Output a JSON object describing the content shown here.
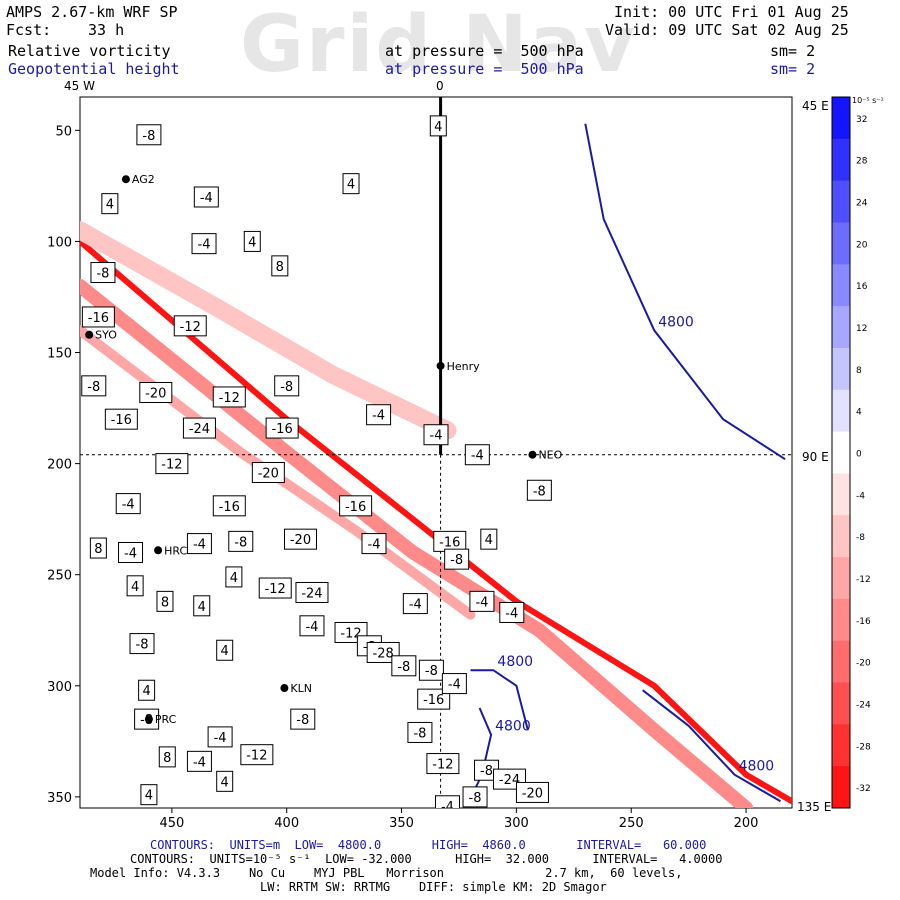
{
  "header": {
    "model": "AMPS 2.67-km WRF SP",
    "fcst_label": "Fcst:",
    "fcst_value": "33 h",
    "init": "Init: 00 UTC Fri 01 Aug 25",
    "valid": "Valid: 09 UTC Sat 02 Aug 25",
    "field1": "Relative vorticity",
    "field2": "Geopotential height",
    "pressure1": "at pressure =  500 hPa",
    "pressure2": "at pressure =  500 hPa",
    "sm1": "sm= 2",
    "sm2": "sm= 2",
    "watermark": "Grid Nav",
    "lon_left": "45 W",
    "lon_top": "0"
  },
  "right_labels": {
    "e45": "45 E",
    "e90": "90 E",
    "e135": "135 E"
  },
  "stations": [
    {
      "name": "AG2",
      "x": 470,
      "y": 72
    },
    {
      "name": "SYO",
      "x": 486,
      "y": 142
    },
    {
      "name": "Henry",
      "x": 333,
      "y": 156
    },
    {
      "name": "NEO",
      "x": 293,
      "y": 196
    },
    {
      "name": "HRC",
      "x": 456,
      "y": 239
    },
    {
      "name": "KLN",
      "x": 401,
      "y": 301
    },
    {
      "name": "PRC",
      "x": 460,
      "y": 315
    }
  ],
  "contour_labels": [
    {
      "v": "-8",
      "x": 460,
      "y": 52
    },
    {
      "v": "4",
      "x": 334,
      "y": 48
    },
    {
      "v": "4",
      "x": 372,
      "y": 74
    },
    {
      "v": "-4",
      "x": 435,
      "y": 80
    },
    {
      "v": "4",
      "x": 477,
      "y": 83
    },
    {
      "v": "-4",
      "x": 436,
      "y": 101
    },
    {
      "v": "4",
      "x": 415,
      "y": 100
    },
    {
      "v": "8",
      "x": 403,
      "y": 111
    },
    {
      "v": "-8",
      "x": 480,
      "y": 114
    },
    {
      "v": "-16",
      "x": 482,
      "y": 134
    },
    {
      "v": "-12",
      "x": 442,
      "y": 138
    },
    {
      "v": "-8",
      "x": 484,
      "y": 165
    },
    {
      "v": "-20",
      "x": 457,
      "y": 168
    },
    {
      "v": "-12",
      "x": 425,
      "y": 170
    },
    {
      "v": "-8",
      "x": 400,
      "y": 165
    },
    {
      "v": "-4",
      "x": 360,
      "y": 178
    },
    {
      "v": "-16",
      "x": 472,
      "y": 180
    },
    {
      "v": "-24",
      "x": 438,
      "y": 184
    },
    {
      "v": "-16",
      "x": 402,
      "y": 184
    },
    {
      "v": "-4",
      "x": 335,
      "y": 187
    },
    {
      "v": "-4",
      "x": 317,
      "y": 196
    },
    {
      "v": "-12",
      "x": 450,
      "y": 200
    },
    {
      "v": "-20",
      "x": 408,
      "y": 204
    },
    {
      "v": "-8",
      "x": 290,
      "y": 212
    },
    {
      "v": "-4",
      "x": 469,
      "y": 218
    },
    {
      "v": "-16",
      "x": 425,
      "y": 219
    },
    {
      "v": "-16",
      "x": 370,
      "y": 219
    },
    {
      "v": "-4",
      "x": 438,
      "y": 236
    },
    {
      "v": "-8",
      "x": 420,
      "y": 235
    },
    {
      "v": "-20",
      "x": 394,
      "y": 234
    },
    {
      "v": "-4",
      "x": 362,
      "y": 236
    },
    {
      "v": "-16",
      "x": 329,
      "y": 235
    },
    {
      "v": "8",
      "x": 482,
      "y": 238
    },
    {
      "v": "4",
      "x": 312,
      "y": 234
    },
    {
      "v": "-4",
      "x": 468,
      "y": 240
    },
    {
      "v": "-8",
      "x": 326,
      "y": 243
    },
    {
      "v": "4",
      "x": 423,
      "y": 251
    },
    {
      "v": "4",
      "x": 466,
      "y": 255
    },
    {
      "v": "-12",
      "x": 405,
      "y": 256
    },
    {
      "v": "-24",
      "x": 389,
      "y": 258
    },
    {
      "v": "-4",
      "x": 344,
      "y": 263
    },
    {
      "v": "-4",
      "x": 315,
      "y": 262
    },
    {
      "v": "-4",
      "x": 302,
      "y": 267
    },
    {
      "v": "8",
      "x": 453,
      "y": 262
    },
    {
      "v": "4",
      "x": 437,
      "y": 264
    },
    {
      "v": "-4",
      "x": 389,
      "y": 273
    },
    {
      "v": "-12",
      "x": 372,
      "y": 276
    },
    {
      "v": "-8",
      "x": 364,
      "y": 282
    },
    {
      "v": "-8",
      "x": 463,
      "y": 281
    },
    {
      "v": "4",
      "x": 427,
      "y": 284
    },
    {
      "v": "-28",
      "x": 358,
      "y": 285
    },
    {
      "v": "-8",
      "x": 349,
      "y": 291
    },
    {
      "v": "-8",
      "x": 337,
      "y": 293
    },
    {
      "v": "-16",
      "x": 336,
      "y": 306
    },
    {
      "v": "-4",
      "x": 327,
      "y": 299
    },
    {
      "v": "4",
      "x": 461,
      "y": 302
    },
    {
      "v": "-8",
      "x": 461,
      "y": 315
    },
    {
      "v": "-4",
      "x": 429,
      "y": 323
    },
    {
      "v": "-8",
      "x": 393,
      "y": 315
    },
    {
      "v": "-12",
      "x": 413,
      "y": 331
    },
    {
      "v": "8",
      "x": 452,
      "y": 332
    },
    {
      "v": "-4",
      "x": 438,
      "y": 334
    },
    {
      "v": "4",
      "x": 427,
      "y": 343
    },
    {
      "v": "4",
      "x": 460,
      "y": 349
    },
    {
      "v": "-8",
      "x": 342,
      "y": 321
    },
    {
      "v": "-12",
      "x": 332,
      "y": 335
    },
    {
      "v": "-8",
      "x": 313,
      "y": 338
    },
    {
      "v": "-24",
      "x": 303,
      "y": 342
    },
    {
      "v": "-20",
      "x": 293,
      "y": 348
    },
    {
      "v": "-8",
      "x": 318,
      "y": 350
    },
    {
      "v": "-4",
      "x": 330,
      "y": 354
    }
  ],
  "colorbar": {
    "unit_label": "10⁻⁵ s⁻¹",
    "levels": [
      "32",
      "28",
      "24",
      "20",
      "16",
      "12",
      "8",
      "4",
      "0",
      "-4",
      "-8",
      "-12",
      "-16",
      "-20",
      "-24",
      "-28",
      "-32"
    ]
  },
  "footer": {
    "line1": "CONTOURS:  UNITS=m  LOW=  4800.0       HIGH=  4860.0       INTERVAL=   60.000",
    "line2": "CONTOURS:  UNITS=10⁻⁵ s⁻¹  LOW= -32.000      HIGH=  32.000      INTERVAL=   4.0000",
    "line3": "Model Info: V4.3.3    No Cu    MYJ PBL   Morrison              2.7 km,  60 levels,",
    "line4": "LW: RRTM SW: RRTMG    DIFF: simple KM: 2D Smagor"
  },
  "chart_data": {
    "type": "heatmap",
    "title": "Relative vorticity / Geopotential height at pressure = 500 hPa",
    "xlabel": "",
    "ylabel": "",
    "xlim": [
      490,
      180
    ],
    "ylim": [
      355,
      35
    ],
    "x_ticks": [
      450,
      400,
      350,
      300,
      250,
      200
    ],
    "y_ticks": [
      50,
      100,
      150,
      200,
      250,
      300,
      350
    ],
    "colorbar_range": [
      -32,
      32
    ],
    "colorbar_interval": 4,
    "height_contours": [
      {
        "value": 4800,
        "label": "4800",
        "points": [
          [
            295,
            320
          ],
          [
            300,
            300
          ],
          [
            310,
            293
          ],
          [
            320,
            293
          ]
        ]
      },
      {
        "value": 4800,
        "label": "4800",
        "points": [
          [
            270,
            47
          ],
          [
            262,
            90
          ],
          [
            240,
            140
          ],
          [
            210,
            180
          ],
          [
            183,
            198
          ]
        ]
      },
      {
        "value": 4800,
        "label": "4800",
        "points": [
          [
            245,
            302
          ],
          [
            225,
            318
          ],
          [
            205,
            340
          ],
          [
            185,
            352
          ]
        ]
      },
      {
        "value": 4800,
        "label": "4800",
        "points": [
          [
            322,
            355
          ],
          [
            315,
            340
          ],
          [
            311,
            322
          ],
          [
            316,
            310
          ]
        ]
      }
    ],
    "vorticity_bands": [
      {
        "value": -32,
        "points": [
          [
            490,
            100
          ],
          [
            400,
            180
          ],
          [
            345,
            225
          ],
          [
            300,
            262
          ],
          [
            240,
            300
          ],
          [
            200,
            340
          ],
          [
            180,
            352
          ]
        ]
      },
      {
        "value": -16,
        "points": [
          [
            490,
            120
          ],
          [
            400,
            195
          ],
          [
            345,
            240
          ],
          [
            290,
            275
          ],
          [
            240,
            320
          ],
          [
            200,
            355
          ]
        ]
      },
      {
        "value": -12,
        "points": [
          [
            490,
            140
          ],
          [
            420,
            195
          ],
          [
            370,
            230
          ],
          [
            320,
            268
          ]
        ]
      },
      {
        "value": -8,
        "points": [
          [
            490,
            95
          ],
          [
            430,
            130
          ],
          [
            380,
            160
          ],
          [
            330,
            185
          ]
        ]
      }
    ],
    "reference_lines": {
      "meridian_x": 333,
      "parallel_y": 196
    }
  }
}
